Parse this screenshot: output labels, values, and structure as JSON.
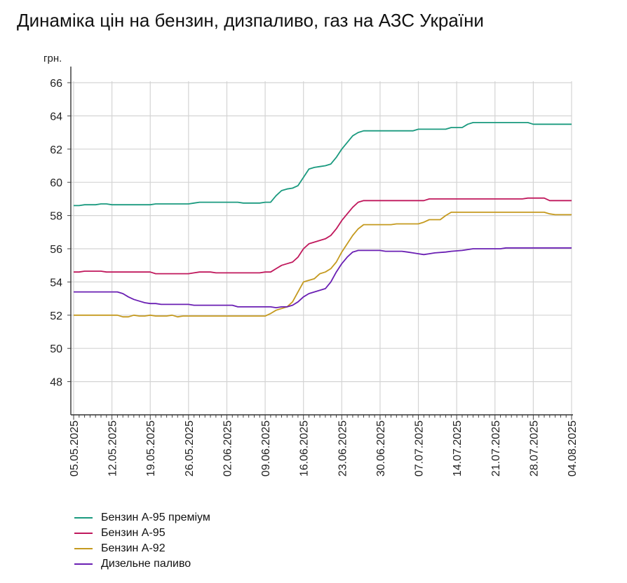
{
  "chart_data": {
    "type": "line",
    "title": "Динаміка цін на бензин, дизпаливо, газ на АЗС України",
    "ylabel": "грн.",
    "xlabel": "",
    "ylim": [
      46,
      66
    ],
    "yticks": [
      48,
      50,
      52,
      54,
      56,
      58,
      60,
      62,
      64,
      66
    ],
    "grid": true,
    "legend_position": "bottom-left",
    "x_start": "05.05.2025",
    "x_days": 91,
    "x_tick_labels": [
      "05.05.2025",
      "12.05.2025",
      "19.05.2025",
      "26.05.2025",
      "02.06.2025",
      "09.06.2025",
      "16.06.2025",
      "23.06.2025",
      "30.06.2025",
      "07.07.2025",
      "14.07.2025",
      "21.07.2025",
      "28.07.2025",
      "04.08.2025"
    ],
    "series": [
      {
        "name": "Бензин А-95 преміум",
        "color": "#1a9a7f",
        "points": [
          [
            0,
            58.6
          ],
          [
            1,
            58.6
          ],
          [
            2,
            58.65
          ],
          [
            4,
            58.65
          ],
          [
            5,
            58.7
          ],
          [
            6,
            58.7
          ],
          [
            7,
            58.65
          ],
          [
            14,
            58.65
          ],
          [
            15,
            58.7
          ],
          [
            21,
            58.7
          ],
          [
            22,
            58.75
          ],
          [
            23,
            58.8
          ],
          [
            30,
            58.8
          ],
          [
            31,
            58.75
          ],
          [
            34,
            58.75
          ],
          [
            35,
            58.8
          ],
          [
            36,
            58.8
          ],
          [
            37,
            59.2
          ],
          [
            38,
            59.5
          ],
          [
            39,
            59.6
          ],
          [
            40,
            59.65
          ],
          [
            41,
            59.8
          ],
          [
            42,
            60.3
          ],
          [
            43,
            60.8
          ],
          [
            44,
            60.9
          ],
          [
            45,
            60.95
          ],
          [
            46,
            61.0
          ],
          [
            47,
            61.1
          ],
          [
            48,
            61.5
          ],
          [
            49,
            62.0
          ],
          [
            50,
            62.4
          ],
          [
            51,
            62.8
          ],
          [
            52,
            63.0
          ],
          [
            53,
            63.1
          ],
          [
            62,
            63.1
          ],
          [
            63,
            63.2
          ],
          [
            68,
            63.2
          ],
          [
            69,
            63.3
          ],
          [
            71,
            63.3
          ],
          [
            72,
            63.5
          ],
          [
            73,
            63.6
          ],
          [
            83,
            63.6
          ],
          [
            84,
            63.5
          ],
          [
            91,
            63.5
          ]
        ]
      },
      {
        "name": "Бензин А-95",
        "color": "#c0185c",
        "points": [
          [
            0,
            54.6
          ],
          [
            1,
            54.6
          ],
          [
            2,
            54.65
          ],
          [
            5,
            54.65
          ],
          [
            6,
            54.6
          ],
          [
            14,
            54.6
          ],
          [
            15,
            54.5
          ],
          [
            21,
            54.5
          ],
          [
            22,
            54.55
          ],
          [
            23,
            54.6
          ],
          [
            25,
            54.6
          ],
          [
            26,
            54.55
          ],
          [
            34,
            54.55
          ],
          [
            35,
            54.6
          ],
          [
            36,
            54.6
          ],
          [
            37,
            54.8
          ],
          [
            38,
            55.0
          ],
          [
            39,
            55.1
          ],
          [
            40,
            55.2
          ],
          [
            41,
            55.5
          ],
          [
            42,
            56.0
          ],
          [
            43,
            56.3
          ],
          [
            44,
            56.4
          ],
          [
            45,
            56.5
          ],
          [
            46,
            56.6
          ],
          [
            47,
            56.8
          ],
          [
            48,
            57.2
          ],
          [
            49,
            57.7
          ],
          [
            50,
            58.1
          ],
          [
            51,
            58.5
          ],
          [
            52,
            58.8
          ],
          [
            53,
            58.9
          ],
          [
            64,
            58.9
          ],
          [
            65,
            59.0
          ],
          [
            82,
            59.0
          ],
          [
            83,
            59.05
          ],
          [
            86,
            59.05
          ],
          [
            87,
            58.9
          ],
          [
            91,
            58.9
          ]
        ]
      },
      {
        "name": "Бензин А-92",
        "color": "#c59a1f",
        "points": [
          [
            0,
            52.0
          ],
          [
            8,
            52.0
          ],
          [
            9,
            51.9
          ],
          [
            10,
            51.9
          ],
          [
            11,
            52.0
          ],
          [
            12,
            51.95
          ],
          [
            13,
            51.95
          ],
          [
            14,
            52.0
          ],
          [
            15,
            51.95
          ],
          [
            17,
            51.95
          ],
          [
            18,
            52.0
          ],
          [
            19,
            51.9
          ],
          [
            20,
            51.95
          ],
          [
            35,
            51.95
          ],
          [
            36,
            52.1
          ],
          [
            37,
            52.3
          ],
          [
            38,
            52.4
          ],
          [
            39,
            52.5
          ],
          [
            40,
            52.8
          ],
          [
            41,
            53.4
          ],
          [
            42,
            54.0
          ],
          [
            43,
            54.1
          ],
          [
            44,
            54.2
          ],
          [
            45,
            54.5
          ],
          [
            46,
            54.6
          ],
          [
            47,
            54.8
          ],
          [
            48,
            55.2
          ],
          [
            49,
            55.8
          ],
          [
            50,
            56.3
          ],
          [
            51,
            56.8
          ],
          [
            52,
            57.2
          ],
          [
            53,
            57.45
          ],
          [
            58,
            57.45
          ],
          [
            59,
            57.5
          ],
          [
            63,
            57.5
          ],
          [
            64,
            57.6
          ],
          [
            65,
            57.75
          ],
          [
            67,
            57.75
          ],
          [
            68,
            58.0
          ],
          [
            69,
            58.2
          ],
          [
            86,
            58.2
          ],
          [
            87,
            58.1
          ],
          [
            88,
            58.05
          ],
          [
            91,
            58.05
          ]
        ]
      },
      {
        "name": "Дизельне паливо",
        "color": "#6a1fb3",
        "points": [
          [
            0,
            53.4
          ],
          [
            8,
            53.4
          ],
          [
            9,
            53.3
          ],
          [
            10,
            53.1
          ],
          [
            11,
            52.95
          ],
          [
            12,
            52.85
          ],
          [
            13,
            52.75
          ],
          [
            14,
            52.7
          ],
          [
            15,
            52.7
          ],
          [
            16,
            52.65
          ],
          [
            21,
            52.65
          ],
          [
            22,
            52.6
          ],
          [
            29,
            52.6
          ],
          [
            30,
            52.5
          ],
          [
            36,
            52.5
          ],
          [
            37,
            52.45
          ],
          [
            38,
            52.5
          ],
          [
            39,
            52.5
          ],
          [
            40,
            52.6
          ],
          [
            41,
            52.8
          ],
          [
            42,
            53.1
          ],
          [
            43,
            53.3
          ],
          [
            44,
            53.4
          ],
          [
            45,
            53.5
          ],
          [
            46,
            53.6
          ],
          [
            47,
            54.0
          ],
          [
            48,
            54.6
          ],
          [
            49,
            55.1
          ],
          [
            50,
            55.5
          ],
          [
            51,
            55.8
          ],
          [
            52,
            55.9
          ],
          [
            56,
            55.9
          ],
          [
            57,
            55.85
          ],
          [
            60,
            55.85
          ],
          [
            61,
            55.8
          ],
          [
            62,
            55.75
          ],
          [
            63,
            55.7
          ],
          [
            64,
            55.65
          ],
          [
            65,
            55.7
          ],
          [
            66,
            55.75
          ],
          [
            68,
            55.8
          ],
          [
            69,
            55.85
          ],
          [
            71,
            55.9
          ],
          [
            73,
            56.0
          ],
          [
            78,
            56.0
          ],
          [
            79,
            56.05
          ],
          [
            91,
            56.05
          ]
        ]
      }
    ]
  }
}
